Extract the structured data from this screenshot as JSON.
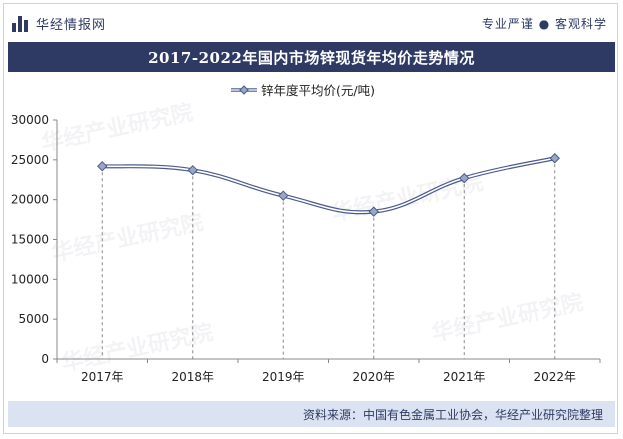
{
  "header": {
    "brand": "华经情报网",
    "tagline": "专业严谨 ● 客观科学"
  },
  "title": "2017-2022年国内市场锌现货年均价走势情况",
  "footer": {
    "source": "资料来源：中国有色金属工业协会，华经产业研究院整理"
  },
  "watermark": "华经产业研究院",
  "colors": {
    "navy": "#2e3a63",
    "line": "#9aa6c6",
    "marker": "#4b5b8c",
    "footer_bg": "#dbe3f2"
  },
  "chart_data": {
    "type": "line",
    "categories": [
      "2017年",
      "2018年",
      "2019年",
      "2020年",
      "2021年",
      "2022年"
    ],
    "series": [
      {
        "name": "锌年度平均价(元/吨)",
        "values": [
          24200,
          23700,
          20500,
          18500,
          22700,
          25200
        ]
      }
    ],
    "yticks": [
      0,
      5000,
      10000,
      15000,
      20000,
      25000,
      30000
    ],
    "ylim": [
      0,
      30000
    ],
    "legend": "top-center",
    "dashed_drop_lines": true,
    "smooth": true
  }
}
